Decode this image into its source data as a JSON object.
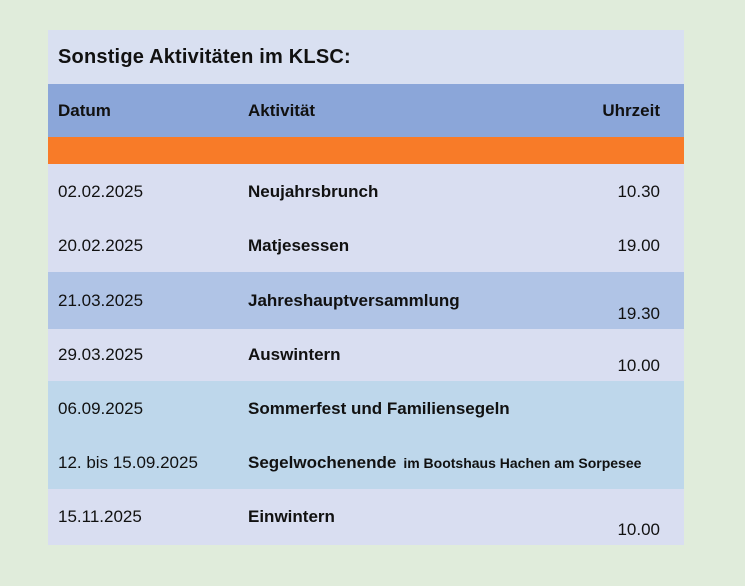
{
  "title": "Sonstige Aktivitäten im KLSC:",
  "columns": [
    "Datum",
    "Aktivität",
    "Uhrzeit"
  ],
  "rows": [
    {
      "date": "02.02.2025",
      "activity": "Neujahrsbrunch",
      "time": "10.30"
    },
    {
      "date": "20.02.2025",
      "activity": "Matjesessen",
      "time": "19.00"
    },
    {
      "date": "21.03.2025",
      "activity": "Jahreshauptversammlung",
      "time": "19.30"
    },
    {
      "date": "29.03.2025",
      "activity": "Auswintern",
      "time": "10.00"
    },
    {
      "date": "06.09.2025",
      "activity": "Sommerfest und Familiensegeln",
      "time": ""
    },
    {
      "date": "12. bis 15.09.2025",
      "activity": "Segelwochenende",
      "activity_detail": "im Bootshaus Hachen am Sorpesee",
      "time": ""
    },
    {
      "date": "15.11.2025",
      "activity": "Einwintern",
      "time": "10.00"
    }
  ],
  "colors": {
    "page-bg": "#e0ecdb",
    "title-bg": "#d9e0f1",
    "header-bg": "#8ba6d9",
    "accent-orange": "#f87b28",
    "row-lavender": "#d9def1",
    "row-medium-blue": "#b0c4e6",
    "row-light-blue": "#bed7eb",
    "text": "#111111"
  }
}
